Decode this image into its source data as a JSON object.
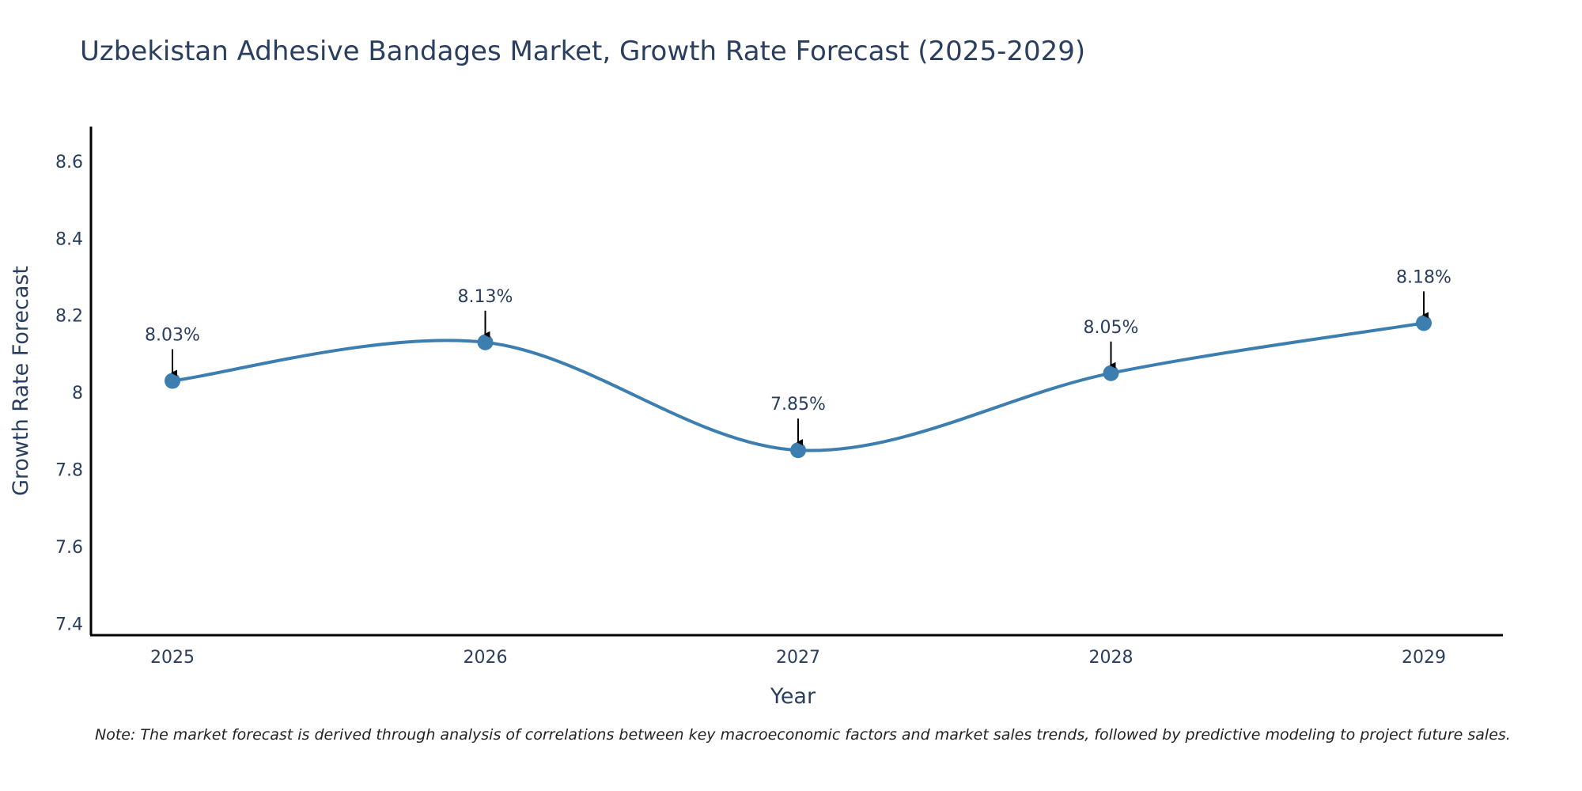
{
  "colors": {
    "line": "#3d7eb0",
    "marker": "#3d7eb0",
    "axis": "#000000",
    "text": "#2a3f5f",
    "arrow": "#000000"
  },
  "chart_data": {
    "type": "line",
    "title": "Uzbekistan Adhesive Bandages Market, Growth Rate Forecast (2025-2029)",
    "xlabel": "Year",
    "ylabel": "Growth Rate Forecast",
    "categories": [
      "2025",
      "2026",
      "2027",
      "2028",
      "2029"
    ],
    "values": [
      8.03,
      8.13,
      7.85,
      8.05,
      8.18
    ],
    "data_labels": [
      "8.03%",
      "8.13%",
      "7.85%",
      "8.05%",
      "8.18%"
    ],
    "ylim": [
      7.37,
      8.69
    ],
    "yticks": [
      7.4,
      7.6,
      7.8,
      8,
      8.2,
      8.4,
      8.6
    ],
    "ytick_labels": [
      "7.4",
      "7.6",
      "7.8",
      "8",
      "8.2",
      "8.4",
      "8.6"
    ],
    "line_shape": "spline",
    "grid": false,
    "note": "Note: The market forecast is derived through analysis of correlations between key macroeconomic factors and market sales trends, followed by predictive modeling to project future sales."
  }
}
